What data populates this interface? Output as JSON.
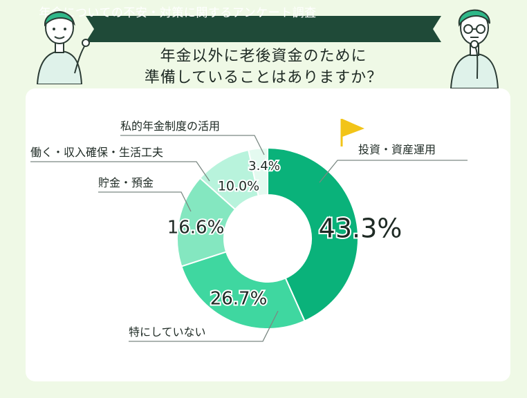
{
  "banner": {
    "title": "年金についての不安・対策に関するアンケート調査"
  },
  "question": {
    "line1": "年金以外に老後資金のために",
    "line2": "準備していることはありますか？"
  },
  "colors": {
    "banner": "#1f4a38",
    "background": "#eff9e6",
    "card": "#ffffff",
    "flag": "#f2c418"
  },
  "chart_data": {
    "type": "pie",
    "donut": true,
    "start": "top",
    "direction": "clockwise",
    "highlight_icon": "flag-icon",
    "slices": [
      {
        "label": "投資・資産運用",
        "value": 43.3,
        "value_label": "43.3%",
        "color": "#0ab27a"
      },
      {
        "label": "特にしていない",
        "value": 26.7,
        "value_label": "26.7%",
        "color": "#3fd7a0"
      },
      {
        "label": "貯金・預金",
        "value": 16.6,
        "value_label": "16.6%",
        "color": "#84e7c0"
      },
      {
        "label": "働く・収入確保・生活工夫",
        "value": 10.0,
        "value_label": "10.0%",
        "color": "#b8f3dc"
      },
      {
        "label": "私的年金制度の活用",
        "value": 3.4,
        "value_label": "3.4%",
        "color": "#e4faf0"
      }
    ]
  }
}
